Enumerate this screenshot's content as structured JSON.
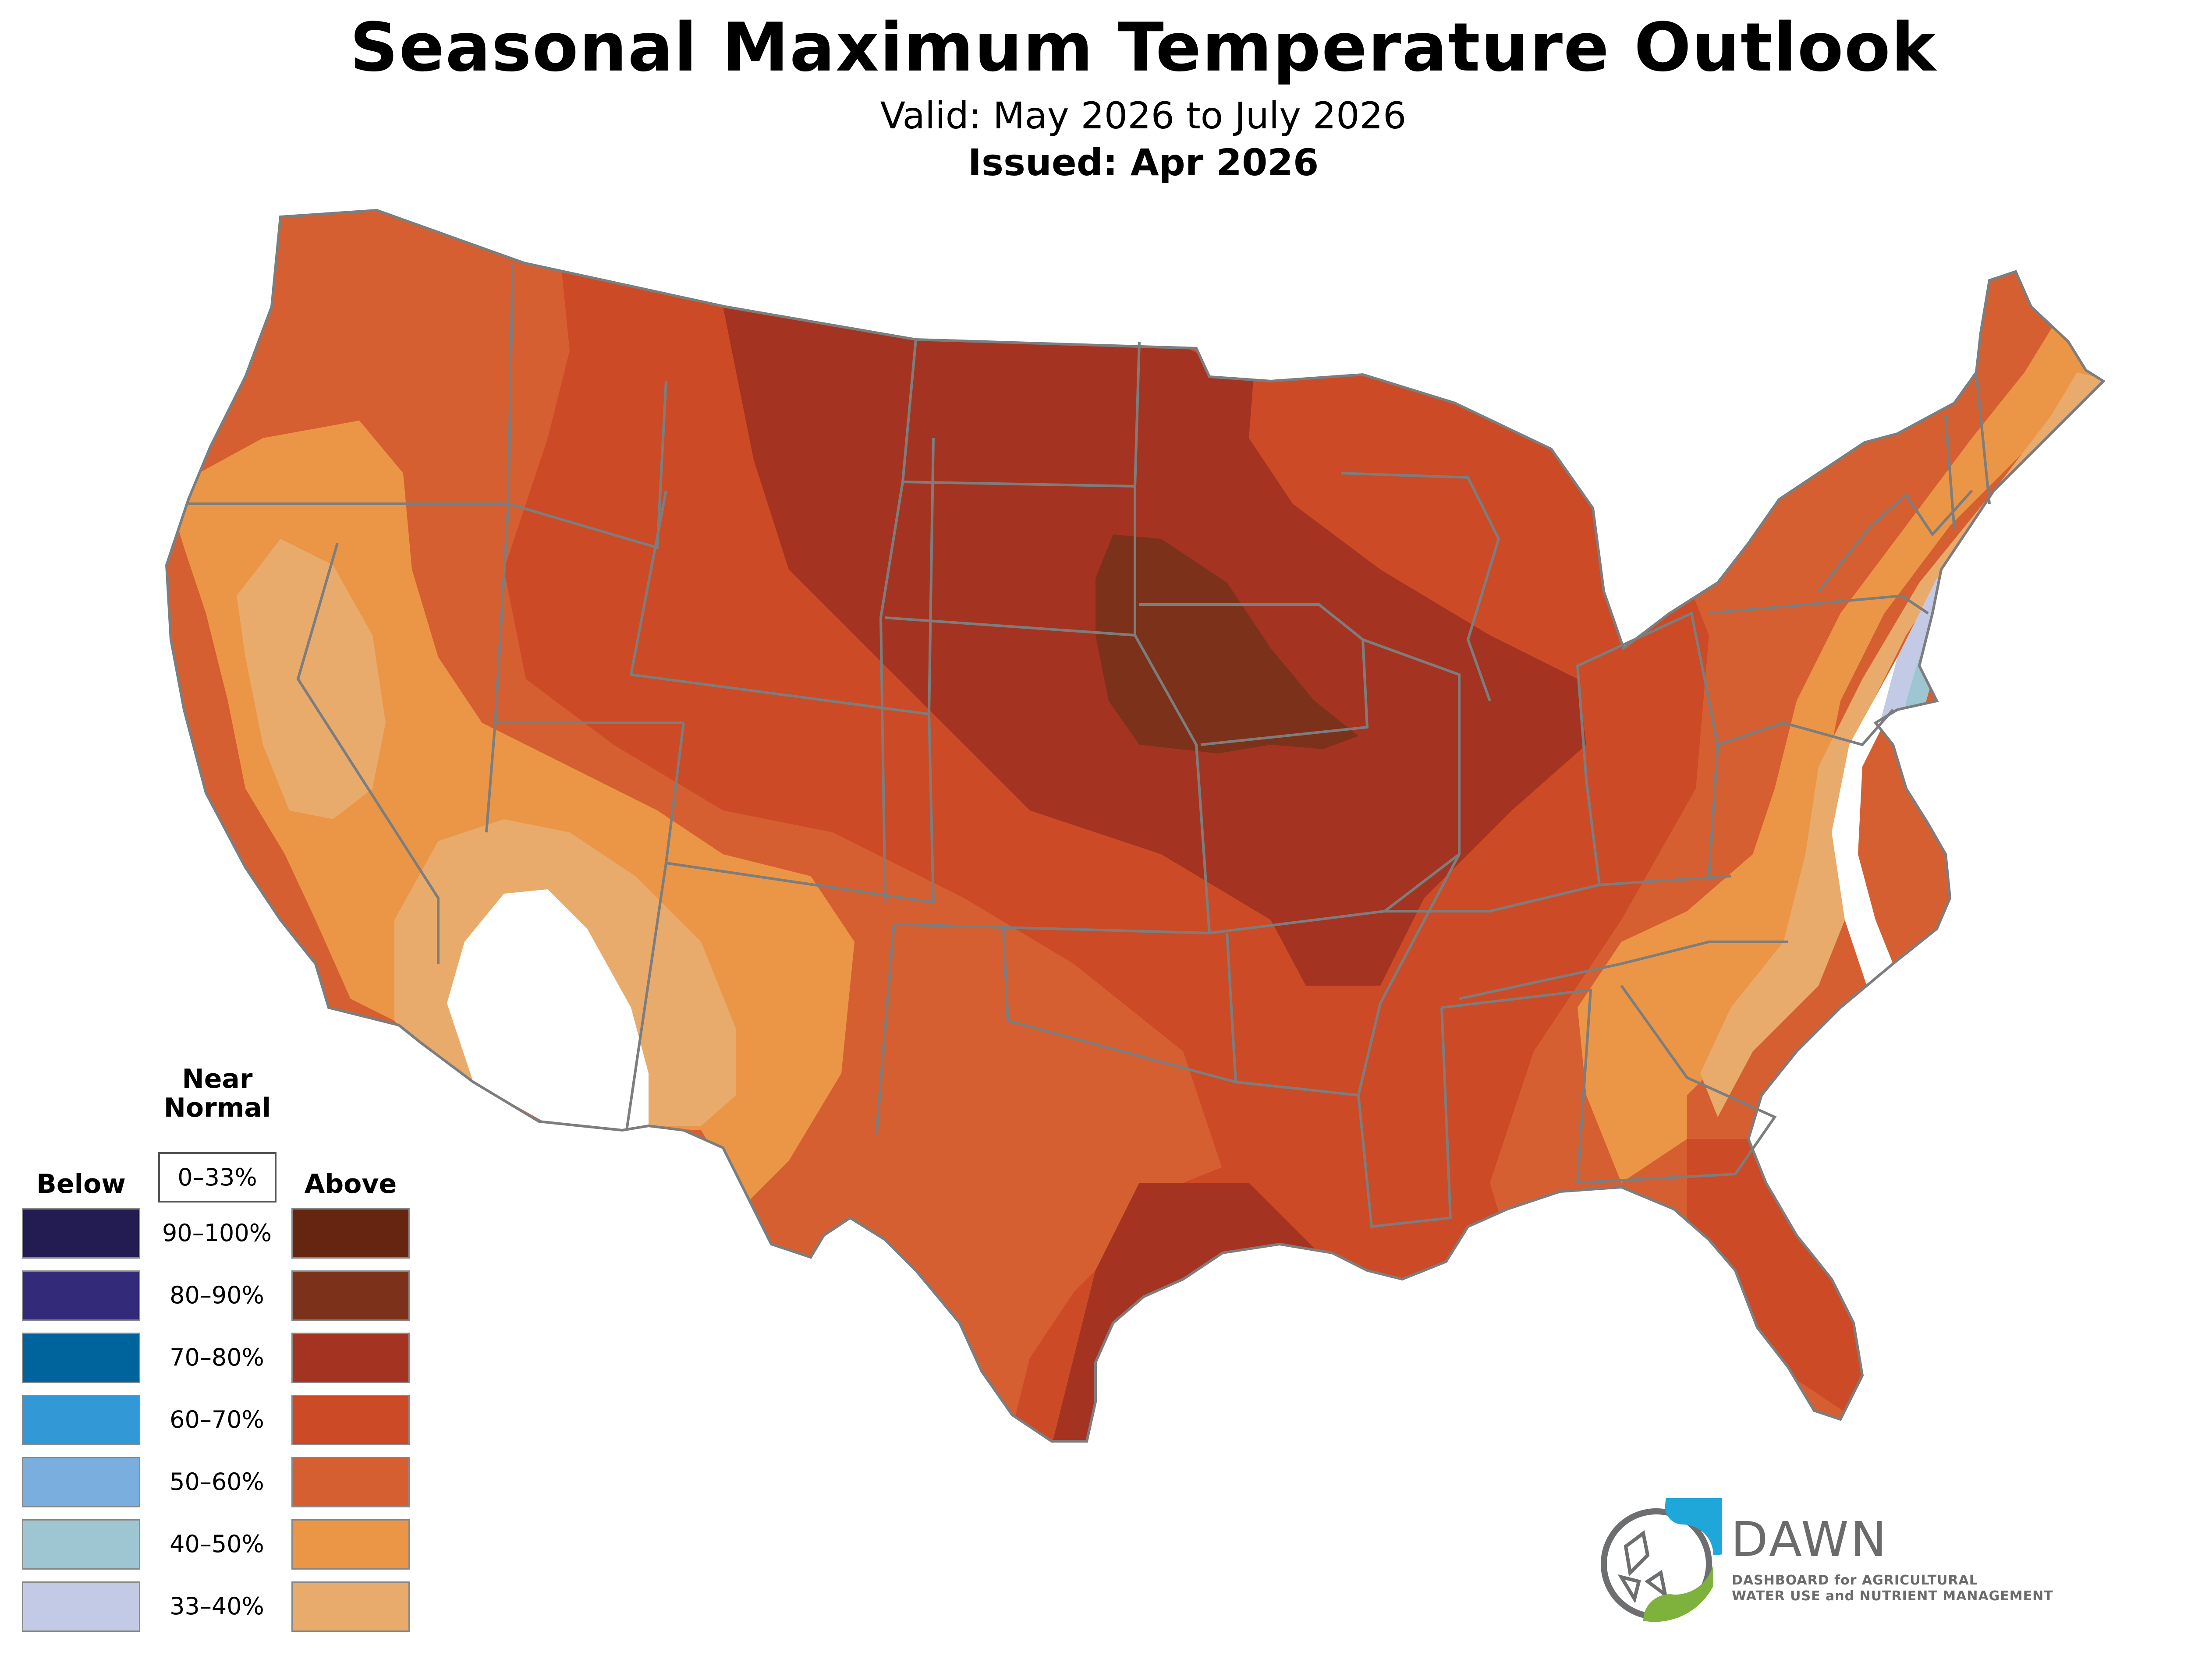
{
  "header": {
    "title": "Seasonal Maximum Temperature Outlook",
    "valid": "Valid: May 2026 to July 2026",
    "issued": "Issued: Apr 2026"
  },
  "legend": {
    "below_label": "Below",
    "near_label_line1": "Near",
    "near_label_line2": "Normal",
    "near_range": "0–33%",
    "above_label": "Above",
    "rows": [
      {
        "range": "90–100%",
        "below_color": "#221c52",
        "above_color": "#662510"
      },
      {
        "range": "80–90%",
        "below_color": "#342a7a",
        "above_color": "#7c311a"
      },
      {
        "range": "70–80%",
        "below_color": "#00649c",
        "above_color": "#a43421"
      },
      {
        "range": "60–70%",
        "below_color": "#3298d6",
        "above_color": "#cc4a25"
      },
      {
        "range": "50–60%",
        "below_color": "#7aaedf",
        "above_color": "#d65f32"
      },
      {
        "range": "40–50%",
        "below_color": "#9ec6d2",
        "above_color": "#eb9646"
      },
      {
        "range": "33–40%",
        "below_color": "#c3cae6",
        "above_color": "#e8ab6c"
      }
    ]
  },
  "logo": {
    "name": "DAWN",
    "tagline_line1": "DASHBOARD for AGRICULTURAL",
    "tagline_line2": "WATER USE and NUTRIENT MANAGEMENT",
    "colors": {
      "blue": "#1ea7d8",
      "green": "#7fb13d",
      "gray": "#6d6e70"
    }
  }
}
